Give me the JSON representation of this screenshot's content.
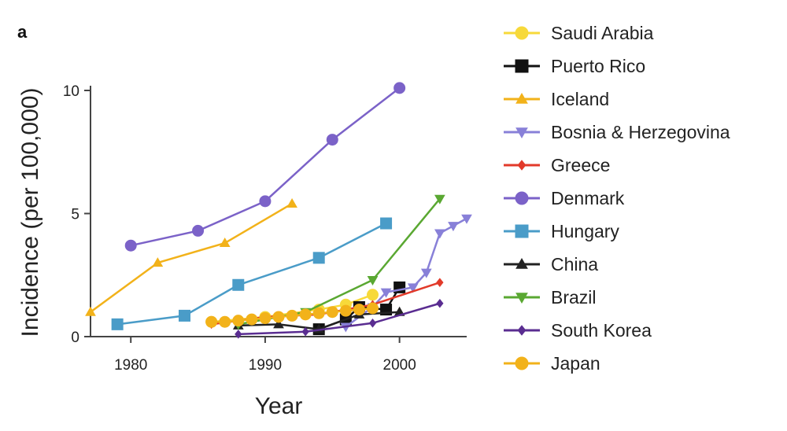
{
  "chart_data": {
    "type": "line",
    "panel_label": "a",
    "title": "",
    "xlabel": "Year",
    "ylabel": "Incidence (per 100,000)",
    "xlim": [
      1977,
      2005
    ],
    "ylim": [
      0,
      10
    ],
    "xticks": [
      1980,
      1990,
      2000
    ],
    "yticks": [
      0,
      5,
      10
    ],
    "legend_position": "right",
    "series": [
      {
        "name": "Saudi Arabia",
        "color": "#f7d93a",
        "marker": "circle",
        "x": [
          1986,
          1990,
          1994,
          1996,
          1998
        ],
        "y": [
          0.6,
          0.8,
          1.1,
          1.3,
          1.7
        ]
      },
      {
        "name": "Puerto Rico",
        "color": "#111111",
        "marker": "square",
        "x": [
          1994,
          1996,
          1997,
          1999,
          2000
        ],
        "y": [
          0.3,
          0.7,
          1.2,
          1.1,
          2.0
        ]
      },
      {
        "name": "Iceland",
        "color": "#f2b21a",
        "marker": "triangle-up",
        "x": [
          1977,
          1982,
          1987,
          1992
        ],
        "y": [
          1.0,
          3.0,
          3.8,
          5.4
        ]
      },
      {
        "name": "Bosnia & Herzegovina",
        "color": "#8880d8",
        "marker": "triangle-down",
        "x": [
          1996,
          1998,
          1999,
          2001,
          2002,
          2003,
          2004,
          2005
        ],
        "y": [
          0.4,
          1.2,
          1.8,
          2.0,
          2.6,
          4.2,
          4.5,
          4.8
        ]
      },
      {
        "name": "Greece",
        "color": "#e23a2a",
        "marker": "diamond",
        "x": [
          1986,
          1990,
          1994,
          1998,
          2003
        ],
        "y": [
          0.5,
          0.8,
          0.9,
          1.3,
          2.2
        ]
      },
      {
        "name": "Denmark",
        "color": "#7b62c8",
        "marker": "circle",
        "x": [
          1980,
          1985,
          1990,
          1995,
          2000
        ],
        "y": [
          3.7,
          4.3,
          5.5,
          8.0,
          10.1
        ]
      },
      {
        "name": "Hungary",
        "color": "#4a9cc8",
        "marker": "square",
        "x": [
          1979,
          1984,
          1988,
          1994,
          1999
        ],
        "y": [
          0.5,
          0.85,
          2.1,
          3.2,
          4.6
        ]
      },
      {
        "name": "China",
        "color": "#222222",
        "marker": "triangle-up",
        "x": [
          1988,
          1991,
          1994,
          1997,
          2000
        ],
        "y": [
          0.45,
          0.5,
          0.3,
          0.9,
          1.0
        ]
      },
      {
        "name": "Brazil",
        "color": "#5aa832",
        "marker": "triangle-down",
        "x": [
          1988,
          1993,
          1998,
          2003
        ],
        "y": [
          0.5,
          1.0,
          2.3,
          5.6
        ]
      },
      {
        "name": "South Korea",
        "color": "#5a2d91",
        "marker": "diamond",
        "x": [
          1988,
          1993,
          1998,
          2003
        ],
        "y": [
          0.1,
          0.2,
          0.55,
          1.35
        ]
      },
      {
        "name": "Japan",
        "color": "#f2b21a",
        "marker": "circle",
        "x": [
          1986,
          1987,
          1988,
          1989,
          1990,
          1991,
          1992,
          1993,
          1994,
          1995,
          1996,
          1997,
          1998
        ],
        "y": [
          0.6,
          0.6,
          0.65,
          0.7,
          0.75,
          0.8,
          0.85,
          0.9,
          0.95,
          1.0,
          1.05,
          1.1,
          1.15
        ]
      }
    ]
  }
}
